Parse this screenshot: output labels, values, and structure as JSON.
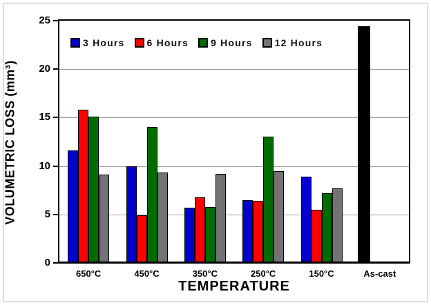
{
  "chart_data": {
    "type": "bar",
    "title": "",
    "xlabel": "TEMPERATURE",
    "ylabel": "VOLUMETRIC LOSS (mm³)",
    "ylim": [
      0,
      25
    ],
    "yticks": [
      0,
      5,
      10,
      15,
      20,
      25
    ],
    "gridlines": [
      5,
      10,
      15,
      20
    ],
    "grid": true,
    "legend_position": "top-inside",
    "categories": [
      "650°C",
      "450°C",
      "350°C",
      "250°C",
      "150°C",
      "As-cast"
    ],
    "series": [
      {
        "name": "3 Hours",
        "color": "#0000CC",
        "values": [
          11.6,
          10.0,
          5.7,
          6.5,
          8.9,
          null
        ]
      },
      {
        "name": "6 Hours",
        "color": "#FF0000",
        "values": [
          15.8,
          4.9,
          6.8,
          6.4,
          5.5,
          null
        ]
      },
      {
        "name": "9 Hours",
        "color": "#006B00",
        "values": [
          15.1,
          14.0,
          5.8,
          13.0,
          7.2,
          null
        ]
      },
      {
        "name": "12 Hours",
        "color": "#737373",
        "values": [
          9.1,
          9.3,
          9.2,
          9.5,
          7.7,
          null
        ]
      }
    ],
    "extra_bar": {
      "category": "As-cast",
      "value": 24.4,
      "color": "#000000"
    }
  },
  "colors": {
    "axis": "#000000",
    "grid": "#9a9a9a",
    "outer_border": "#a9b4bf",
    "background": "#FFFFFF"
  }
}
